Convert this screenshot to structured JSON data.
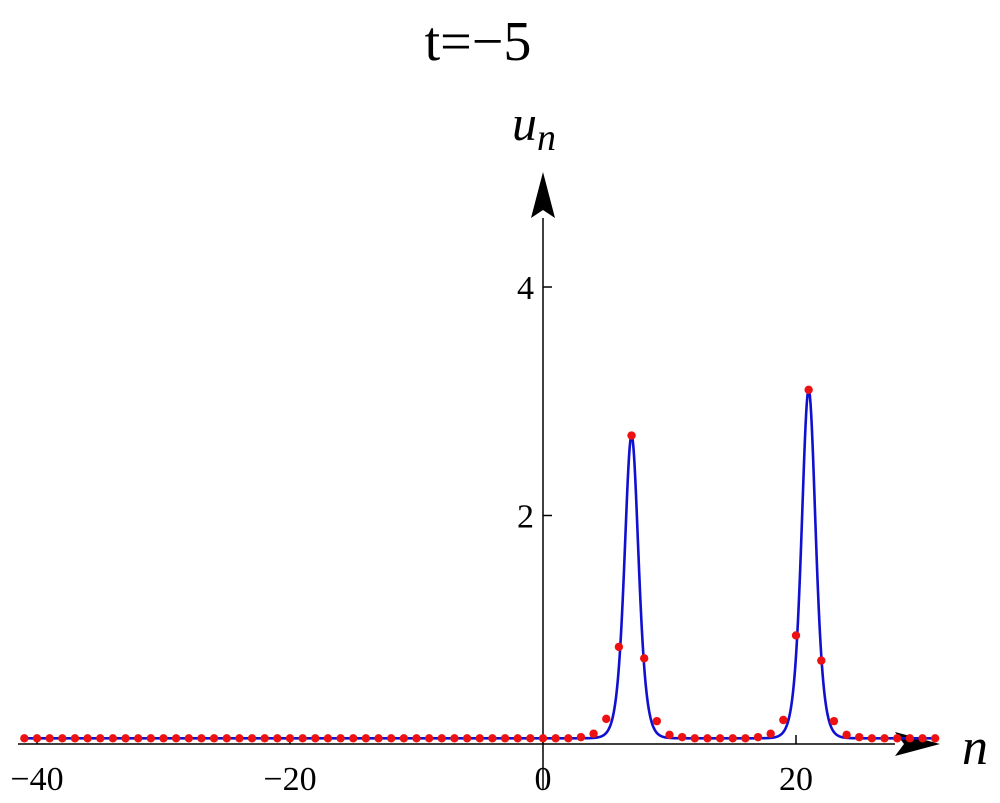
{
  "chart_data": {
    "type": "line",
    "title": "t=−5",
    "xlabel": "n",
    "ylabel": "u",
    "ylabel_sub": "n",
    "xlim": [
      -41.5,
      31.5
    ],
    "ylim": [
      -0.45,
      4.75
    ],
    "xticks": [
      -40,
      -20,
      0,
      20
    ],
    "xtick_labels": [
      "−40",
      "−20",
      "0",
      "20"
    ],
    "yticks": [
      2,
      4
    ],
    "ytick_labels": [
      "2",
      "4"
    ],
    "grid": false,
    "line_color": "#1010d0",
    "point_color": "#ee1111",
    "baseline": 0.05,
    "peaks": [
      {
        "center": 7,
        "height": 2.7
      },
      {
        "center": 21,
        "height": 3.1
      }
    ],
    "series": [
      {
        "x": [
          -41,
          -40,
          -39,
          -38,
          -37,
          -36,
          -35,
          -34,
          -33,
          -32,
          -31,
          -30,
          -29,
          -28,
          -27,
          -26,
          -25,
          -24,
          -23,
          -22,
          -21,
          -20,
          -19,
          -18,
          -17,
          -16,
          -15,
          -14,
          -13,
          -12,
          -11,
          -10,
          -9,
          -8,
          -7,
          -6,
          -5,
          -4,
          -3,
          -2,
          -1,
          0,
          1,
          2,
          3,
          4,
          5,
          6,
          7,
          8,
          9,
          10,
          11,
          12,
          13,
          14,
          15,
          16,
          17,
          18,
          19,
          20,
          21,
          22,
          23,
          24,
          25,
          26,
          27,
          28,
          29,
          30,
          31
        ],
        "values": [
          0.05,
          0.05,
          0.05,
          0.05,
          0.05,
          0.05,
          0.05,
          0.05,
          0.05,
          0.05,
          0.05,
          0.05,
          0.05,
          0.05,
          0.05,
          0.05,
          0.05,
          0.05,
          0.05,
          0.05,
          0.05,
          0.05,
          0.05,
          0.05,
          0.05,
          0.05,
          0.05,
          0.05,
          0.05,
          0.05,
          0.05,
          0.05,
          0.05,
          0.05,
          0.05,
          0.05,
          0.05,
          0.05,
          0.05,
          0.05,
          0.05,
          0.05,
          0.05,
          0.05,
          0.06,
          0.09,
          0.22,
          0.85,
          2.7,
          0.75,
          0.2,
          0.08,
          0.06,
          0.05,
          0.05,
          0.05,
          0.05,
          0.05,
          0.06,
          0.09,
          0.21,
          0.95,
          3.1,
          0.73,
          0.2,
          0.08,
          0.06,
          0.05,
          0.05,
          0.05,
          0.05,
          0.05,
          0.05
        ]
      }
    ]
  }
}
